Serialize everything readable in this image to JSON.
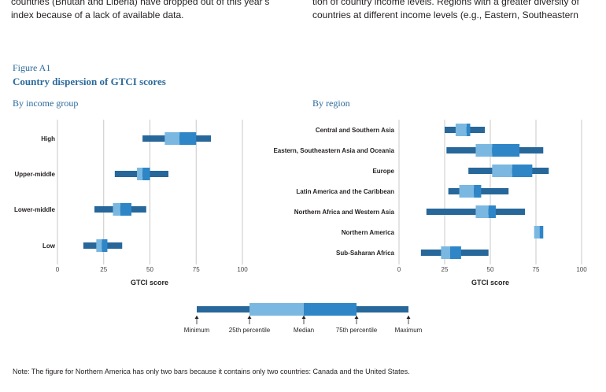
{
  "top_text": {
    "left_line1": "countries (Bhutan and Liberia) have dropped out of this year’s",
    "left_line2": "index because of a lack of available data.",
    "right_line1": "tion of country income levels. Regions with a greater diversity of",
    "right_line2": "countries at different income levels (e.g., Eastern, Southeastern"
  },
  "figure": {
    "label": "Figure A1",
    "title": "Country dispersion of GTCI scores"
  },
  "footnote": "Note: The figure for Northern America has only two bars because it contains only two countries: Canada and the United States.",
  "colors": {
    "dark": "#27679a",
    "mid": "#2e86c7",
    "light": "#7ab8e2",
    "grid": "#c8c8c8",
    "title_blue": "#2b6a9b"
  },
  "chart_data": [
    {
      "type": "boxplot",
      "title": "By income group",
      "xlabel": "GTCI score",
      "xlim": [
        0,
        100
      ],
      "xticks": [
        "0",
        "25",
        "50",
        "75",
        "100"
      ],
      "categories": [
        "High",
        "Upper-middle",
        "Lower-middle",
        "Low"
      ],
      "stats": [
        {
          "min": 46,
          "q1": 58,
          "median": 66,
          "q3": 75,
          "max": 83
        },
        {
          "min": 31,
          "q1": 43,
          "median": 46,
          "q3": 50,
          "max": 60
        },
        {
          "min": 20,
          "q1": 30,
          "median": 34,
          "q3": 40,
          "max": 48
        },
        {
          "min": 14,
          "q1": 21,
          "median": 24,
          "q3": 27,
          "max": 35
        }
      ]
    },
    {
      "type": "boxplot",
      "title": "By region",
      "xlabel": "GTCI score",
      "xlim": [
        0,
        100
      ],
      "xticks": [
        "0",
        "25",
        "50",
        "75",
        "100"
      ],
      "categories": [
        "Central and Southern Asia",
        "Eastern, Southeastern Asia and Oceania",
        "Europe",
        "Latin America and the Caribbean",
        "Northern Africa and Western Asia",
        "Northern America",
        "Sub-Saharan Africa"
      ],
      "stats": [
        {
          "min": 25,
          "q1": 31,
          "median": 37,
          "q3": 39,
          "max": 47
        },
        {
          "min": 26,
          "q1": 42,
          "median": 51,
          "q3": 66,
          "max": 79
        },
        {
          "min": 38,
          "q1": 51,
          "median": 62,
          "q3": 73,
          "max": 82
        },
        {
          "min": 27,
          "q1": 33,
          "median": 41,
          "q3": 45,
          "max": 60
        },
        {
          "min": 15,
          "q1": 42,
          "median": 49,
          "q3": 53,
          "max": 69
        },
        {
          "min": null,
          "q1": 74,
          "median": 77,
          "q3": 79,
          "max": null
        },
        {
          "min": 12,
          "q1": 23,
          "median": 28,
          "q3": 34,
          "max": 49
        }
      ]
    }
  ],
  "legend": {
    "labels": [
      "Minimum",
      "25th percentile",
      "Median",
      "75th percentile",
      "Maximum"
    ]
  }
}
